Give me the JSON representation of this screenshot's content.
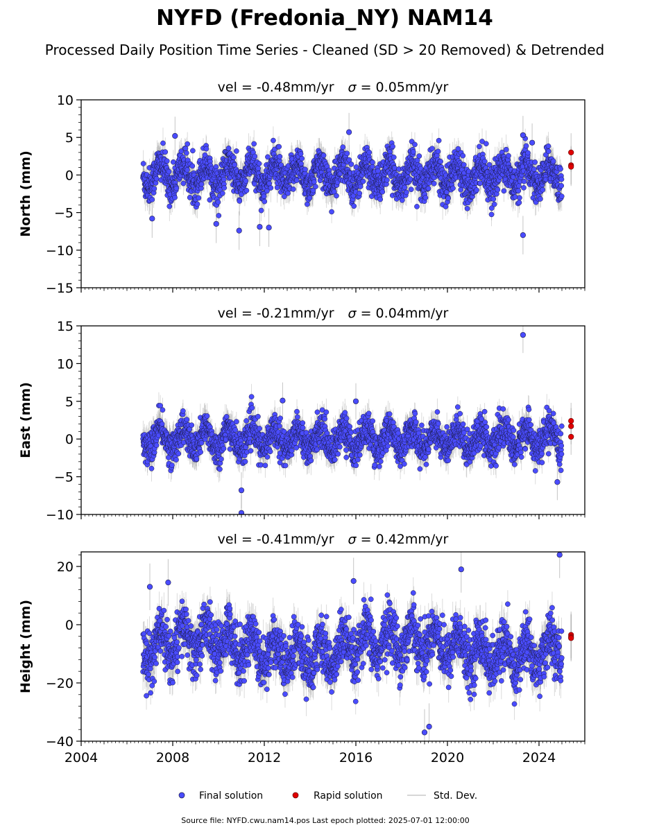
{
  "title": "NYFD (Fredonia_NY) NAM14",
  "subtitle": "Processed Daily Position Time Series - Cleaned (SD > 20 Removed) & Detrended",
  "legend": {
    "final": "Final solution",
    "rapid": "Rapid solution",
    "stddev": "Std. Dev."
  },
  "source_text": "Source file: NYFD.cwu.nam14.pos  Last epoch plotted: 2025-07-01 12:00:00",
  "colors": {
    "final": "#4a4cff",
    "rapid": "#e00000",
    "stddev": "#a0a0a0",
    "marker_edge": "#1a1a40"
  },
  "chart_data": [
    {
      "type": "scatter",
      "panel": "north",
      "title_vel": "vel = -0.48mm/yr",
      "title_sigma_prefix": "σ",
      "title_sigma_value": " = 0.05mm/yr",
      "ylabel": "North (mm)",
      "ylim": [
        -15,
        10
      ],
      "yticks": [
        10,
        5,
        0,
        -5,
        -10,
        -15
      ],
      "xlim": [
        2004,
        2026
      ],
      "time_span": [
        2006.7,
        2025.0
      ],
      "rapid_span": [
        2025.3,
        2025.5
      ],
      "seasonal_amplitude": 1.5,
      "noise_sd": 1.2,
      "typical_std_dev": 1.6,
      "series": [
        {
          "role": "final",
          "samples": [
            {
              "x": 2007.1,
              "y": -5.8
            },
            {
              "x": 2008.1,
              "y": 5.2
            },
            {
              "x": 2009.9,
              "y": -6.5
            },
            {
              "x": 2010.9,
              "y": -7.4
            },
            {
              "x": 2011.8,
              "y": -6.9
            },
            {
              "x": 2012.2,
              "y": -7.0
            },
            {
              "x": 2015.7,
              "y": 5.7
            },
            {
              "x": 2023.3,
              "y": -8.0
            },
            {
              "x": 2023.3,
              "y": 5.3
            },
            {
              "x": 2023.7,
              "y": 4.3
            }
          ]
        },
        {
          "role": "rapid",
          "samples": [
            {
              "x": 2025.4,
              "y": 3.0
            },
            {
              "x": 2025.4,
              "y": 1.3
            },
            {
              "x": 2025.4,
              "y": 1.1
            }
          ]
        }
      ]
    },
    {
      "type": "scatter",
      "panel": "east",
      "title_vel": "vel = -0.21mm/yr",
      "title_sigma_prefix": "σ",
      "title_sigma_value": " = 0.04mm/yr",
      "ylabel": "East (mm)",
      "ylim": [
        -10,
        15
      ],
      "yticks": [
        15,
        10,
        5,
        0,
        -5,
        -10
      ],
      "xlim": [
        2004,
        2026
      ],
      "time_span": [
        2006.7,
        2025.0
      ],
      "rapid_span": [
        2025.3,
        2025.5
      ],
      "seasonal_amplitude": 1.4,
      "noise_sd": 1.1,
      "typical_std_dev": 1.5,
      "series": [
        {
          "role": "final",
          "samples": [
            {
              "x": 2023.3,
              "y": 13.8
            },
            {
              "x": 2011.0,
              "y": -9.8
            },
            {
              "x": 2011.0,
              "y": -6.8
            },
            {
              "x": 2012.8,
              "y": 5.1
            },
            {
              "x": 2016.0,
              "y": 5.0
            },
            {
              "x": 2024.8,
              "y": -5.7
            }
          ]
        },
        {
          "role": "rapid",
          "samples": [
            {
              "x": 2025.4,
              "y": 2.4
            },
            {
              "x": 2025.4,
              "y": 1.7
            },
            {
              "x": 2025.4,
              "y": 0.3
            }
          ]
        }
      ]
    },
    {
      "type": "scatter",
      "panel": "height",
      "title_vel": "vel = -0.41mm/yr",
      "title_sigma_prefix": "σ",
      "title_sigma_value": " = 0.42mm/yr",
      "ylabel": "Height (mm)",
      "ylim": [
        -40,
        25
      ],
      "yticks": [
        20,
        0,
        -20,
        -40
      ],
      "xlim": [
        2004,
        2026
      ],
      "xticks": [
        2004,
        2008,
        2012,
        2016,
        2020,
        2024
      ],
      "time_span": [
        2006.7,
        2025.0
      ],
      "rapid_span": [
        2025.3,
        2025.5
      ],
      "seasonal_amplitude": 5.0,
      "noise_sd": 4.5,
      "typical_std_dev": 5.0,
      "series": [
        {
          "role": "final",
          "samples": [
            {
              "x": 2007.0,
              "y": 13.0
            },
            {
              "x": 2007.8,
              "y": 14.5
            },
            {
              "x": 2015.9,
              "y": 15.0
            },
            {
              "x": 2020.6,
              "y": 19.0
            },
            {
              "x": 2024.9,
              "y": 24.0
            },
            {
              "x": 2019.0,
              "y": -37.0
            },
            {
              "x": 2019.2,
              "y": -35.0
            }
          ]
        },
        {
          "role": "rapid",
          "samples": [
            {
              "x": 2025.4,
              "y": -3.5
            },
            {
              "x": 2025.4,
              "y": -4.2
            },
            {
              "x": 2025.4,
              "y": -4.6
            }
          ]
        }
      ]
    }
  ]
}
